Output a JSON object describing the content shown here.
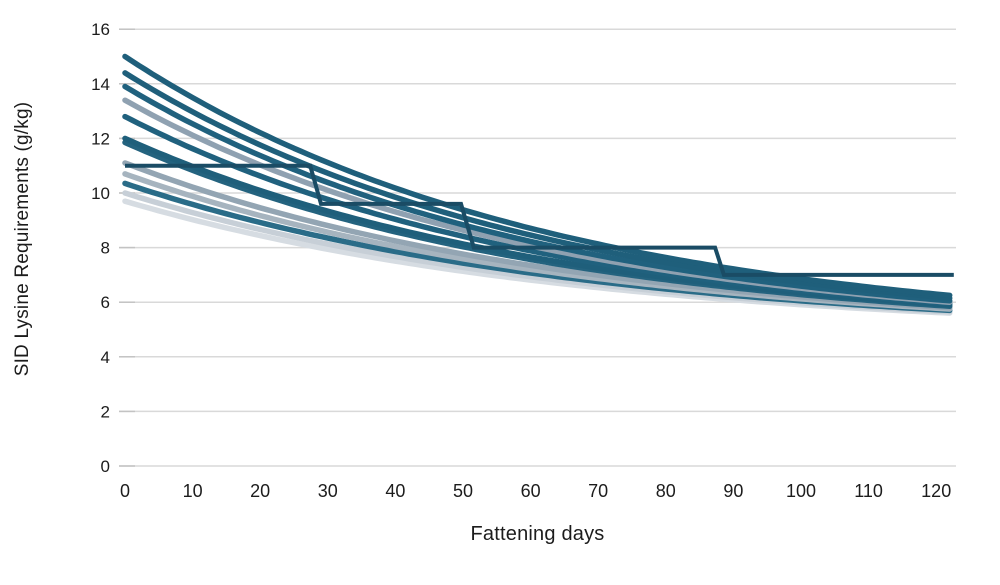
{
  "chart_data": {
    "type": "line",
    "title": "",
    "xlabel": "Fattening days",
    "ylabel": "SID Lysine Requirements (g/kg)",
    "x_ticks": [
      0,
      10,
      20,
      30,
      40,
      50,
      60,
      70,
      80,
      90,
      100,
      110,
      120
    ],
    "y_ticks": [
      0,
      2,
      4,
      6,
      8,
      10,
      12,
      14,
      16
    ],
    "xlim": [
      0,
      123
    ],
    "ylim": [
      0,
      16
    ],
    "grid": "horizontal-only",
    "legend_position": "none",
    "x_end_day": 122,
    "decay_asymptote": 4.8,
    "series": [
      {
        "name": "requirement-curve-1",
        "color": "#1F5F7B",
        "width": 5.5,
        "start": 15.0,
        "end": 6.25
      },
      {
        "name": "requirement-curve-2",
        "color": "#1F5F7B",
        "width": 5.5,
        "start": 14.4,
        "end": 6.15
      },
      {
        "name": "requirement-curve-3",
        "color": "#20617E",
        "width": 5.5,
        "start": 13.9,
        "end": 6.05
      },
      {
        "name": "requirement-curve-4",
        "color": "#8FA1B1",
        "width": 5.5,
        "start": 13.4,
        "end": 6.0
      },
      {
        "name": "requirement-curve-5",
        "color": "#20617E",
        "width": 5.5,
        "start": 12.8,
        "end": 5.95
      },
      {
        "name": "requirement-curve-6",
        "color": "#1F5F7B",
        "width": 5.5,
        "start": 12.0,
        "end": 5.9
      },
      {
        "name": "requirement-curve-7",
        "color": "#24637F",
        "width": 5.5,
        "start": 11.85,
        "end": 5.85
      },
      {
        "name": "requirement-curve-8",
        "color": "#93A5B3",
        "width": 5.5,
        "start": 11.1,
        "end": 5.8
      },
      {
        "name": "requirement-curve-9",
        "color": "#A6B4BF",
        "width": 5.5,
        "start": 10.7,
        "end": 5.75
      },
      {
        "name": "requirement-curve-10",
        "color": "#2A6C88",
        "width": 5.5,
        "start": 10.35,
        "end": 5.7
      },
      {
        "name": "requirement-curve-11",
        "color": "#C7CFD7",
        "width": 5.5,
        "start": 10.0,
        "end": 5.65
      },
      {
        "name": "requirement-curve-12",
        "color": "#D6DCE2",
        "width": 5.5,
        "start": 9.7,
        "end": 5.6
      }
    ],
    "step_series": {
      "name": "step-feeding-program",
      "color": "#1A4C65",
      "width": 4,
      "points": [
        [
          0,
          11.0
        ],
        [
          27.4,
          11.0
        ],
        [
          29.0,
          9.6
        ],
        [
          49.7,
          9.6
        ],
        [
          51.6,
          8.0
        ],
        [
          87.3,
          8.0
        ],
        [
          88.6,
          7.0
        ],
        [
          122.6,
          7.0
        ]
      ]
    },
    "style": {
      "gridline_color": "#D9D9D9",
      "tick_stub_color": "#C3C3C3",
      "tick_label_color": "#1C1C1C",
      "background": "#FFFFFF"
    }
  }
}
